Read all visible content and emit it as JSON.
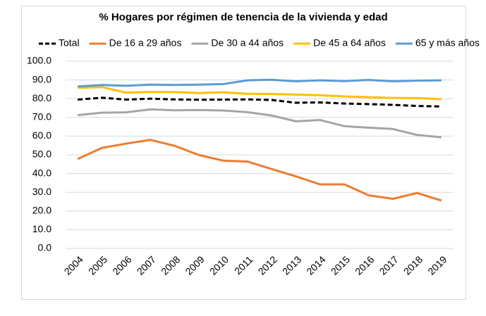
{
  "chart_data": {
    "type": "line",
    "title": "% Hogares por régimen de tenencia de la vivienda y edad",
    "categories": [
      "2004",
      "2005",
      "2006",
      "2007",
      "2008",
      "2009",
      "2010",
      "2011",
      "2012",
      "2013",
      "2014",
      "2015",
      "2016",
      "2017",
      "2018",
      "2019"
    ],
    "series": [
      {
        "name": "Total",
        "color": "#000000",
        "dashed": true,
        "values": [
          79.5,
          80.5,
          79.5,
          80.0,
          79.6,
          79.4,
          79.5,
          79.6,
          79.3,
          77.8,
          78.0,
          77.4,
          77.1,
          76.7,
          76.1,
          75.8
        ]
      },
      {
        "name": "De 16 a 29 años",
        "color": "#ed7d31",
        "values": [
          47.8,
          53.7,
          56.0,
          58.0,
          54.8,
          49.9,
          46.9,
          46.4,
          42.4,
          38.5,
          34.2,
          34.2,
          28.4,
          26.5,
          29.6,
          25.6
        ]
      },
      {
        "name": "De 30 a 44 años",
        "color": "#a5a5a5",
        "values": [
          71.2,
          72.5,
          72.7,
          74.3,
          73.8,
          73.9,
          73.7,
          72.8,
          71.0,
          67.9,
          68.6,
          65.3,
          64.5,
          63.8,
          60.6,
          59.4
        ]
      },
      {
        "name": "De 45 a 64 años",
        "color": "#ffc000",
        "values": [
          85.8,
          86.2,
          83.2,
          83.6,
          83.5,
          83.0,
          83.4,
          82.6,
          82.5,
          82.2,
          81.8,
          81.2,
          80.8,
          80.4,
          80.3,
          79.7
        ]
      },
      {
        "name": "65 y más años",
        "color": "#5b9bd5",
        "values": [
          86.5,
          87.3,
          86.9,
          87.5,
          87.3,
          87.5,
          87.8,
          89.8,
          90.1,
          89.3,
          89.8,
          89.4,
          90.0,
          89.3,
          89.6,
          89.8
        ]
      }
    ],
    "ylim": [
      0,
      100
    ],
    "yticks": [
      {
        "value": 0,
        "label": "0.0"
      },
      {
        "value": 10,
        "label": "10.0"
      },
      {
        "value": 20,
        "label": "20.0"
      },
      {
        "value": 30,
        "label": "30.0"
      },
      {
        "value": 40,
        "label": "40.0"
      },
      {
        "value": 50,
        "label": "50.0"
      },
      {
        "value": 60,
        "label": "60.0"
      },
      {
        "value": 70,
        "label": "70.0"
      },
      {
        "value": 80,
        "label": "80.0"
      },
      {
        "value": 90,
        "label": "90.0"
      },
      {
        "value": 100,
        "label": "100.0"
      }
    ],
    "grid": true,
    "legend": "top"
  }
}
